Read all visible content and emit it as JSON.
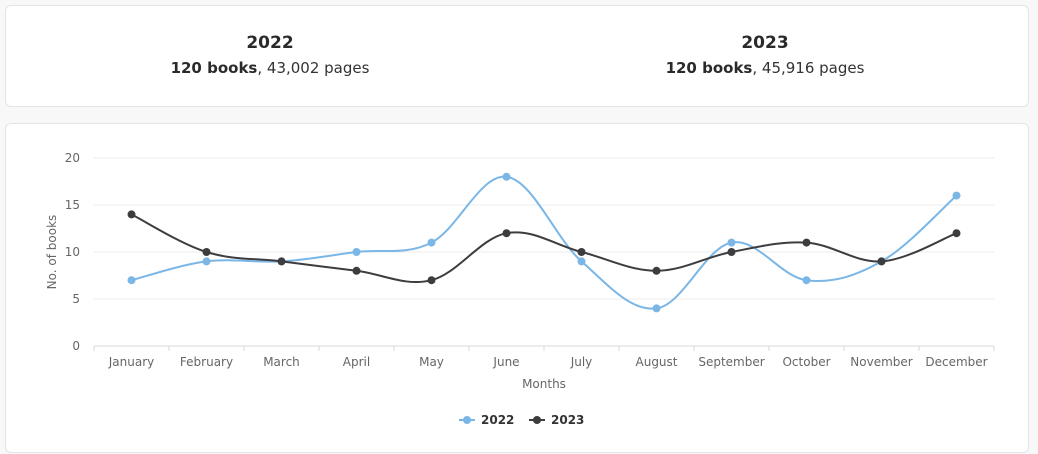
{
  "summary": [
    {
      "year": "2022",
      "books": "120 books",
      "pages": ", 43,002 pages"
    },
    {
      "year": "2023",
      "books": "120 books",
      "pages": ", 45,916 pages"
    }
  ],
  "chart_data": {
    "type": "line",
    "categories": [
      "January",
      "February",
      "March",
      "April",
      "May",
      "June",
      "July",
      "August",
      "September",
      "October",
      "November",
      "December"
    ],
    "series": [
      {
        "name": "2022",
        "color": "#7ab6e6",
        "values": [
          7,
          9,
          9,
          10,
          11,
          18,
          9,
          4,
          11,
          7,
          9,
          16
        ]
      },
      {
        "name": "2023",
        "color": "#3d3d3f",
        "values": [
          14,
          10,
          9,
          8,
          7,
          12,
          10,
          8,
          10,
          11,
          9,
          12
        ]
      }
    ],
    "xlabel": "Months",
    "ylabel": "No. of books",
    "ylim": [
      0,
      20
    ],
    "yticks": [
      0,
      5,
      10,
      15,
      20
    ],
    "grid": true,
    "smooth": true,
    "legend": "bottom-center"
  }
}
